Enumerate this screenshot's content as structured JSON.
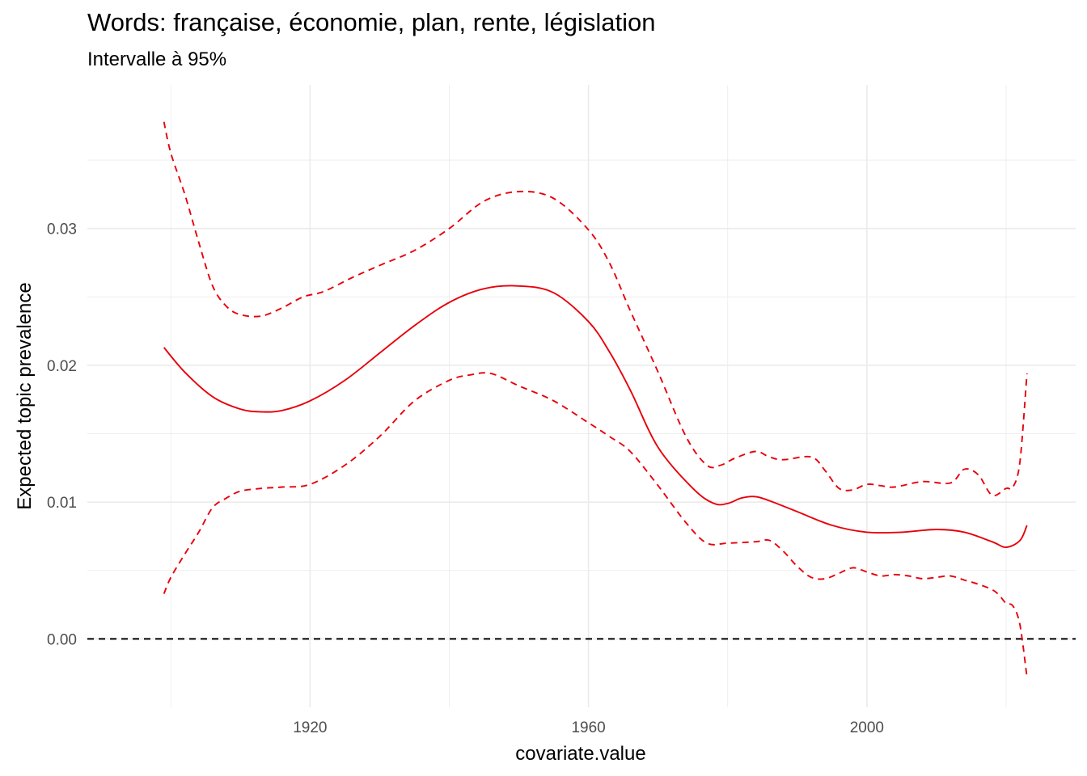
{
  "chart_data": {
    "type": "line",
    "title": "Words: française, économie, plan, rente, législation",
    "subtitle": "Intervalle à 95%",
    "xlabel": "covariate.value",
    "ylabel": "Expected topic prevalence",
    "xlim": [
      1888,
      2030
    ],
    "ylim": [
      -0.005,
      0.0405
    ],
    "x_ticks": [
      1920,
      1960,
      2000
    ],
    "y_ticks": [
      0.0,
      0.01,
      0.02,
      0.03
    ],
    "y_tick_labels": [
      "0.00",
      "0.01",
      "0.02",
      "0.03"
    ],
    "reference_line": 0.0,
    "grid": true,
    "legend": "none",
    "colors": {
      "series": "#e8000b",
      "reference": "#000000",
      "grid": "#ebebeb"
    },
    "series": [
      {
        "role": "estimate",
        "style": "solid",
        "x": [
          1899,
          1902,
          1906,
          1910,
          1913,
          1916,
          1920,
          1925,
          1930,
          1935,
          1940,
          1945,
          1950,
          1955,
          1960,
          1963,
          1966,
          1970,
          1975,
          1978,
          1980,
          1982,
          1984,
          1986,
          1990,
          1995,
          2000,
          2005,
          2010,
          2014,
          2018,
          2020,
          2022,
          2023
        ],
        "y": [
          0.0213,
          0.0195,
          0.0177,
          0.0168,
          0.0166,
          0.0167,
          0.0174,
          0.0189,
          0.0209,
          0.0229,
          0.0246,
          0.0256,
          0.0258,
          0.0253,
          0.0232,
          0.021,
          0.0182,
          0.014,
          0.011,
          0.0099,
          0.0099,
          0.0103,
          0.0104,
          0.0101,
          0.0093,
          0.0083,
          0.0078,
          0.0078,
          0.008,
          0.0078,
          0.0071,
          0.0067,
          0.0072,
          0.0083
        ]
      },
      {
        "role": "upper-95",
        "style": "dashed",
        "x": [
          1899,
          1900,
          1902,
          1904,
          1906,
          1908,
          1910,
          1913,
          1916,
          1919,
          1922,
          1926,
          1930,
          1935,
          1940,
          1945,
          1950,
          1955,
          1960,
          1963,
          1966,
          1970,
          1974,
          1977,
          1979,
          1981,
          1984,
          1986,
          1988,
          1992,
          1994,
          1996,
          1998,
          2000,
          2002,
          2004,
          2008,
          2012,
          2014,
          2016,
          2018,
          2020,
          2021,
          2022,
          2023
        ],
        "y": [
          0.0378,
          0.0355,
          0.0325,
          0.029,
          0.0258,
          0.0243,
          0.0237,
          0.0236,
          0.0242,
          0.025,
          0.0254,
          0.0264,
          0.0273,
          0.0284,
          0.03,
          0.032,
          0.0327,
          0.0322,
          0.0299,
          0.0275,
          0.024,
          0.0195,
          0.0148,
          0.0127,
          0.0127,
          0.0132,
          0.0137,
          0.0133,
          0.0131,
          0.0133,
          0.0123,
          0.011,
          0.0109,
          0.0113,
          0.0112,
          0.0111,
          0.0115,
          0.0114,
          0.0124,
          0.012,
          0.0105,
          0.011,
          0.0111,
          0.013,
          0.0194
        ]
      },
      {
        "role": "lower-95",
        "style": "dashed",
        "x": [
          1899,
          1900,
          1902,
          1904,
          1906,
          1908,
          1910,
          1913,
          1916,
          1920,
          1925,
          1930,
          1935,
          1940,
          1943,
          1946,
          1950,
          1955,
          1960,
          1963,
          1966,
          1970,
          1974,
          1977,
          1980,
          1984,
          1986,
          1988,
          1990,
          1992,
          1994,
          1996,
          1998,
          2000,
          2002,
          2004,
          2006,
          2008,
          2010,
          2012,
          2014,
          2016,
          2018,
          2019,
          2020,
          2021,
          2022,
          2023
        ],
        "y": [
          0.0033,
          0.0045,
          0.0062,
          0.0078,
          0.0096,
          0.0103,
          0.0108,
          0.011,
          0.0111,
          0.0113,
          0.0127,
          0.0148,
          0.0174,
          0.0189,
          0.0193,
          0.0194,
          0.0185,
          0.0174,
          0.0158,
          0.0148,
          0.0137,
          0.0112,
          0.0085,
          0.007,
          0.007,
          0.0071,
          0.0072,
          0.0064,
          0.0053,
          0.0045,
          0.0044,
          0.0048,
          0.0052,
          0.0049,
          0.0046,
          0.0047,
          0.0046,
          0.0044,
          0.0045,
          0.0046,
          0.0043,
          0.004,
          0.0036,
          0.0032,
          0.0026,
          0.0024,
          0.001,
          -0.0028
        ]
      }
    ]
  }
}
